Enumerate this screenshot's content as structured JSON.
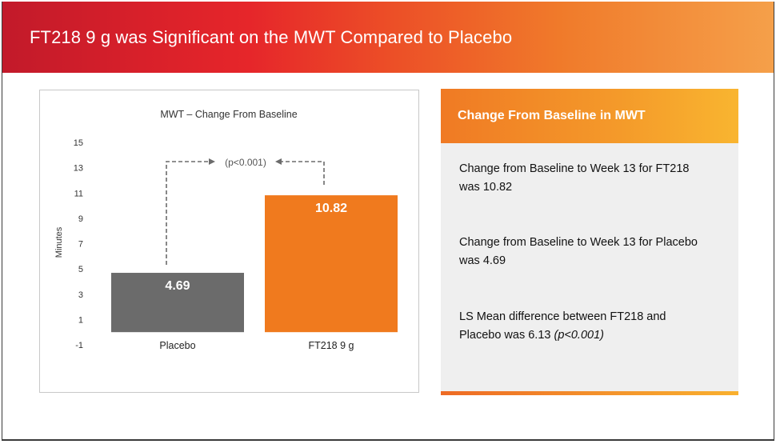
{
  "slide": {
    "title": "FT218 9 g was Significant on the MWT Compared to Placebo"
  },
  "chart_data": {
    "type": "bar",
    "title": "MWT – Change From Baseline",
    "ylabel": "Minutes",
    "xlabel": "",
    "categories": [
      "Placebo",
      "FT218 9 g"
    ],
    "values": [
      4.69,
      10.82
    ],
    "value_labels": [
      "4.69",
      "10.82"
    ],
    "ylim": [
      -1,
      15
    ],
    "yticks": [
      15,
      13,
      11,
      9,
      7,
      5,
      3,
      1,
      -1
    ],
    "bar_colors": [
      "#6b6b6b",
      "#f07a1e"
    ],
    "annotation": "(p<0.001)",
    "grid": false,
    "legend": "none"
  },
  "panel": {
    "header": "Change From Baseline in MWT",
    "stat1": "Change from Baseline to Week 13 for FT218 was 10.82",
    "stat2": "Change from Baseline to Week 13 for Placebo was 4.69",
    "stat3_main": "LS Mean difference between FT218 and Placebo was 6.13 ",
    "stat3_p": "(p<0.001)"
  },
  "colors": {
    "banner_red": "#c21a2a",
    "banner_orange": "#f5a04a",
    "placebo_bar": "#6b6b6b",
    "ft218_bar": "#f07a1e",
    "panel_bg": "#efefef"
  }
}
